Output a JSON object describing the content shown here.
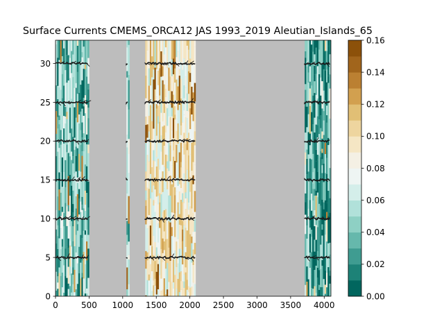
{
  "chart_data": {
    "type": "heatmap",
    "title": "Surface Currents CMEMS_ORCA12 JAS 1993_2019 Aleutian_Islands_65",
    "xlim": [
      0,
      4100
    ],
    "ylim": [
      0,
      33
    ],
    "x_ticks": [
      0,
      500,
      1000,
      1500,
      2000,
      2500,
      3000,
      3500,
      4000
    ],
    "y_ticks": [
      0,
      5,
      10,
      15,
      20,
      25,
      30
    ],
    "x_tick_labels": [
      "0",
      "500",
      "1000",
      "1500",
      "2000",
      "2500",
      "3000",
      "3500",
      "4000"
    ],
    "y_tick_labels": [
      "0",
      "5",
      "10",
      "15",
      "20",
      "25",
      "30"
    ],
    "xlabel": "",
    "ylabel": "",
    "background_color": "#bdbdbd",
    "arrow_color": "#1a1a1a",
    "arrow_rows_y": [
      5,
      10,
      15,
      20,
      25,
      30
    ],
    "colorbar": {
      "min": 0.0,
      "max": 0.16,
      "step": 0.01,
      "ticks": [
        0.0,
        0.02,
        0.04,
        0.06,
        0.08,
        0.1,
        0.12,
        0.14,
        0.16
      ],
      "tick_labels": [
        "0.00",
        "0.02",
        "0.04",
        "0.06",
        "0.08",
        "0.10",
        "0.12",
        "0.14",
        "0.16"
      ],
      "colors": [
        "#01665e",
        "#1d8277",
        "#3f9c91",
        "#66b8ac",
        "#8ed0c4",
        "#b1e1da",
        "#d4eeea",
        "#eef5f3",
        "#f4f0e4",
        "#f5e6c4",
        "#eed59f",
        "#e1bf75",
        "#d2a04f",
        "#bb8032",
        "#a1651c",
        "#8c510a"
      ]
    },
    "data_bands": [
      {
        "x_range": [
          0,
          490
        ],
        "mean_speed": 0.04
      },
      {
        "x_range": [
          1055,
          1085
        ],
        "mean_speed": 0.05
      },
      {
        "x_range": [
          1335,
          2080
        ],
        "mean_speed": 0.09
      },
      {
        "x_range": [
          3710,
          4090
        ],
        "mean_speed": 0.03
      }
    ]
  }
}
